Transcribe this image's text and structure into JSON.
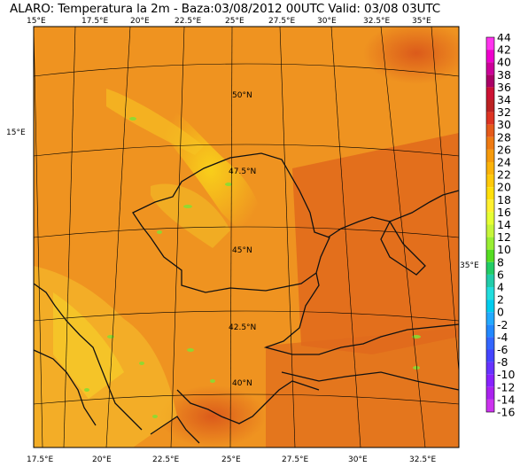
{
  "title": "ALARO: Temperatura la 2m - Baza:03/08/2012 00UTC Valid: 03/08  03UTC",
  "top_axis_labels": [
    "15°E",
    "17.5°E",
    "20°E",
    "22.5°E",
    "25°E",
    "27.5°E",
    "30°E",
    "32.5°E",
    "35°E"
  ],
  "bottom_axis_labels": [
    "17.5°E",
    "20°E",
    "22.5°E",
    "25°E",
    "27.5°E",
    "30°E",
    "32.5°E"
  ],
  "lat_labels": [
    "50°N",
    "47.5°N",
    "45°N",
    "42.5°N",
    "40°N"
  ],
  "side_labels": {
    "left": "15°E",
    "right": "35°E"
  },
  "colorbar": {
    "labels": [
      "44",
      "42",
      "40",
      "38",
      "36",
      "34",
      "32",
      "30",
      "28",
      "26",
      "24",
      "22",
      "20",
      "18",
      "16",
      "14",
      "12",
      "10",
      "8",
      "6",
      "4",
      "2",
      "0",
      "-2",
      "-4",
      "-6",
      "-8",
      "-10",
      "-12",
      "-14",
      "-16"
    ],
    "colors": [
      "#ff33ee",
      "#ee00cc",
      "#cc0099",
      "#aa0066",
      "#cc1133",
      "#bb2222",
      "#dd3322",
      "#e55a1a",
      "#ee7a12",
      "#f59a0c",
      "#fbb30a",
      "#ffc90a",
      "#ffdf0a",
      "#fff030",
      "#e6ff33",
      "#c6f53a",
      "#99ee33",
      "#55dd22",
      "#22cc66",
      "#22ccaa",
      "#22dddd",
      "#00ccee",
      "#22aaff",
      "#2288ff",
      "#3366ff",
      "#4444ff",
      "#6633ff",
      "#8822ff",
      "#aa22ee",
      "#cc33ee"
    ]
  }
}
